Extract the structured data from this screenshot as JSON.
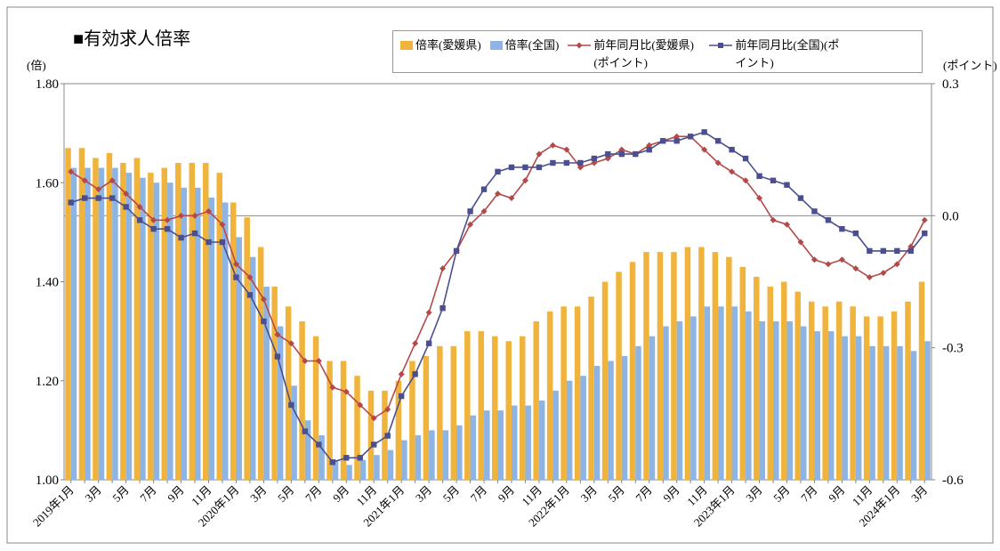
{
  "chart_data": {
    "type": "bar-line",
    "title": "■有効求人倍率",
    "y_label": "(倍)",
    "y2_label": "(ポイント)",
    "categories": [
      "2019年1月",
      null,
      "3月",
      null,
      "5月",
      null,
      "7月",
      null,
      "9月",
      null,
      "11月",
      null,
      "2020年1月",
      null,
      "3月",
      null,
      "5月",
      null,
      "7月",
      null,
      "9月",
      null,
      "11月",
      null,
      "2021年1月",
      null,
      "3月",
      null,
      "5月",
      null,
      "7月",
      null,
      "9月",
      null,
      "11月",
      null,
      "2022年1月",
      null,
      "3月",
      null,
      "5月",
      null,
      "7月",
      null,
      "9月",
      null,
      "11月",
      null,
      "2023年1月",
      null,
      "3月",
      null,
      "5月",
      null,
      "7月",
      null,
      "9月",
      null,
      "11月",
      null,
      "2024年1月",
      null,
      "3月"
    ],
    "ylim": [
      1.0,
      1.8
    ],
    "yticks": [
      {
        "value": 1.0,
        "label": "1.00"
      },
      {
        "value": 1.2,
        "label": "1.20"
      },
      {
        "value": 1.4,
        "label": "1.40"
      },
      {
        "value": 1.6,
        "label": "1.60"
      },
      {
        "value": 1.8,
        "label": "1.80"
      }
    ],
    "y2lim": [
      -0.6,
      0.3
    ],
    "y2ticks": [
      -0.6,
      -0.3,
      {
        "value": 0.0,
        "label": "0.0"
      },
      0.3
    ],
    "series": [
      {
        "name": "倍率(愛媛県)",
        "kind": "bar",
        "color": "#f0b43c",
        "values": [
          1.67,
          1.67,
          1.65,
          1.66,
          1.64,
          1.65,
          1.62,
          1.63,
          1.64,
          1.64,
          1.64,
          1.62,
          1.56,
          1.53,
          1.47,
          1.39,
          1.35,
          1.32,
          1.29,
          1.24,
          1.24,
          1.21,
          1.18,
          1.18,
          1.2,
          1.24,
          1.25,
          1.27,
          1.27,
          1.3,
          1.3,
          1.29,
          1.28,
          1.29,
          1.32,
          1.34,
          1.35,
          1.35,
          1.37,
          1.4,
          1.42,
          1.44,
          1.46,
          1.46,
          1.46,
          1.47,
          1.47,
          1.46,
          1.45,
          1.43,
          1.41,
          1.39,
          1.4,
          1.38,
          1.36,
          1.35,
          1.36,
          1.35,
          1.33,
          1.33,
          1.34,
          1.36,
          1.4
        ]
      },
      {
        "name": "倍率(全国)",
        "kind": "bar",
        "color": "#8db4e2",
        "values": [
          1.63,
          1.63,
          1.63,
          1.63,
          1.62,
          1.61,
          1.6,
          1.6,
          1.59,
          1.59,
          1.57,
          1.56,
          1.49,
          1.45,
          1.39,
          1.31,
          1.19,
          1.12,
          1.09,
          1.04,
          1.03,
          1.04,
          1.05,
          1.06,
          1.08,
          1.09,
          1.1,
          1.1,
          1.11,
          1.13,
          1.14,
          1.14,
          1.15,
          1.15,
          1.16,
          1.18,
          1.2,
          1.21,
          1.23,
          1.24,
          1.25,
          1.27,
          1.29,
          1.31,
          1.32,
          1.33,
          1.35,
          1.35,
          1.35,
          1.34,
          1.32,
          1.32,
          1.32,
          1.31,
          1.3,
          1.3,
          1.29,
          1.29,
          1.27,
          1.27,
          1.27,
          1.26,
          1.28
        ]
      },
      {
        "name": "前年同月比(愛媛県)(ポイント)",
        "kind": "line",
        "marker": "diamond",
        "axis": "y2",
        "color": "#b5494a",
        "values": [
          0.1,
          0.08,
          0.06,
          0.08,
          0.05,
          0.02,
          -0.01,
          -0.01,
          0.0,
          0.0,
          0.01,
          -0.02,
          -0.11,
          -0.14,
          -0.19,
          -0.27,
          -0.29,
          -0.33,
          -0.33,
          -0.39,
          -0.4,
          -0.43,
          -0.46,
          -0.44,
          -0.36,
          -0.29,
          -0.22,
          -0.12,
          -0.08,
          -0.02,
          0.01,
          0.05,
          0.04,
          0.08,
          0.14,
          0.16,
          0.15,
          0.11,
          0.12,
          0.13,
          0.15,
          0.14,
          0.16,
          0.17,
          0.18,
          0.18,
          0.15,
          0.12,
          0.1,
          0.08,
          0.04,
          -0.01,
          -0.02,
          -0.06,
          -0.1,
          -0.11,
          -0.1,
          -0.12,
          -0.14,
          -0.13,
          -0.11,
          -0.07,
          -0.01
        ]
      },
      {
        "name": "前年同月比(全国)(ポイント)",
        "kind": "line",
        "marker": "square",
        "axis": "y2",
        "color": "#4b4f8f",
        "values": [
          0.03,
          0.04,
          0.04,
          0.04,
          0.02,
          -0.01,
          -0.03,
          -0.03,
          -0.05,
          -0.04,
          -0.06,
          -0.06,
          -0.14,
          -0.18,
          -0.24,
          -0.32,
          -0.43,
          -0.49,
          -0.52,
          -0.56,
          -0.55,
          -0.55,
          -0.52,
          -0.5,
          -0.41,
          -0.36,
          -0.29,
          -0.21,
          -0.08,
          0.01,
          0.06,
          0.1,
          0.11,
          0.11,
          0.11,
          0.12,
          0.12,
          0.12,
          0.13,
          0.14,
          0.14,
          0.14,
          0.15,
          0.17,
          0.17,
          0.18,
          0.19,
          0.17,
          0.15,
          0.13,
          0.09,
          0.08,
          0.07,
          0.04,
          0.01,
          -0.01,
          -0.03,
          -0.04,
          -0.08,
          -0.08,
          -0.08,
          -0.08,
          -0.04
        ]
      }
    ]
  }
}
